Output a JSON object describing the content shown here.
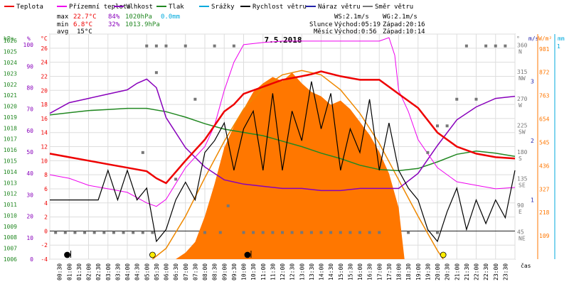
{
  "chart_data": {
    "type": "line",
    "title": "7.5.2018",
    "legend": [
      {
        "label": "Teplota",
        "color": "#ee0000"
      },
      {
        "label": "Přízemní teplota",
        "color": "#ee00ee"
      },
      {
        "label": "Vlhkost",
        "color": "#8800bb"
      },
      {
        "label": "Tlak",
        "color": "#228822"
      },
      {
        "label": "Srážky",
        "color": "#00aadd"
      },
      {
        "label": "Rychlost větru",
        "color": "#000000"
      },
      {
        "label": "Náraz větru",
        "color": "#2222aa"
      },
      {
        "label": "Směr větru",
        "color": "#777777"
      }
    ],
    "stats": {
      "max_label": "max",
      "max_temp": "22.7°C",
      "max_hum": "84%",
      "max_press": "1020hPa",
      "max_rain": "0.0mm",
      "min_label": "min",
      "min_temp": "6.8°C",
      "min_hum": "32%",
      "min_press": "1013.9hPa",
      "avg_label": "avg",
      "avg_temp": "15°C"
    },
    "wind_info": {
      "ws": "WS:2.1m/s",
      "wg": "WG:2.1m/s"
    },
    "sun_info": {
      "label": "Slunce",
      "rise": "Východ:05:19",
      "set": "Západ:20:16"
    },
    "moon_info": {
      "label": "Měsíc",
      "rise": "Východ:0:56",
      "set": "Západ:10:14"
    },
    "axis_units": {
      "hpa": "hPa",
      "pct": "%",
      "temp": "°C",
      "deg": "°",
      "ms": "m/s",
      "wm2": "W/m²",
      "mm": "mm",
      "time": "čas"
    },
    "ylim_temp": [
      -4,
      28
    ],
    "hpa_ticks": [
      "1026",
      "1025",
      "1024",
      "1023",
      "1022",
      "1021",
      "1020",
      "1019",
      "1018",
      "1017",
      "1016",
      "1015",
      "1014",
      "1013",
      "1012",
      "1011",
      "1010",
      "1009",
      "1008",
      "1007",
      "1006"
    ],
    "pct_ticks": [
      "100",
      "90",
      "80",
      "70",
      "60",
      "50",
      "40",
      "30",
      "20",
      "10",
      "0"
    ],
    "temp_ticks": [
      "26",
      "24",
      "22",
      "20",
      "18",
      "16",
      "14",
      "12",
      "10",
      "8",
      "6",
      "4",
      "2",
      "0",
      "-2",
      "-4"
    ],
    "dir_ticks": [
      {
        "deg": "360",
        "dir": "N"
      },
      {
        "deg": "315",
        "dir": "NW"
      },
      {
        "deg": "270",
        "dir": "W"
      },
      {
        "deg": "225",
        "dir": "SW"
      },
      {
        "deg": "180",
        "dir": "S"
      },
      {
        "deg": "135",
        "dir": "SE"
      },
      {
        "deg": "90",
        "dir": "E"
      },
      {
        "deg": "45",
        "dir": "NE"
      }
    ],
    "ms_ticks": [
      "3",
      "2",
      "1"
    ],
    "wm2_ticks": [
      "981",
      "872",
      "763",
      "654",
      "545",
      "436",
      "327",
      "218",
      "109"
    ],
    "mm_ticks": [
      "1"
    ],
    "x_labels": [
      "00:30",
      "01:00",
      "01:30",
      "02:00",
      "02:30",
      "03:00",
      "03:30",
      "04:00",
      "04:30",
      "05:00",
      "05:30",
      "06:00",
      "06:30",
      "07:00",
      "07:30",
      "08:00",
      "08:30",
      "09:00",
      "09:30",
      "10:00",
      "10:30",
      "11:00",
      "11:30",
      "12:00",
      "12:30",
      "13:00",
      "13:30",
      "14:00",
      "14:30",
      "15:00",
      "15:30",
      "16:00",
      "16:30",
      "17:00",
      "17:30",
      "18:00",
      "18:30",
      "19:00",
      "19:30",
      "20:00",
      "20:30",
      "21:00",
      "21:30",
      "22:00",
      "22:30",
      "23:00",
      "23:30"
    ],
    "x_hours": [
      0,
      1,
      2,
      3,
      4,
      5,
      6,
      7,
      8,
      9,
      10,
      11,
      12,
      13,
      14,
      15,
      16,
      17,
      18,
      19,
      20,
      21,
      22,
      23,
      24
    ],
    "series": [
      {
        "name": "Teplota",
        "color": "#ee0000",
        "x": [
          0,
          1,
          2,
          3,
          4,
          5,
          5.5,
          6,
          7,
          8,
          9,
          9.5,
          10,
          11,
          12,
          13,
          13.5,
          14,
          15,
          16,
          17,
          17.5,
          18,
          19,
          20,
          21,
          22,
          23,
          24
        ],
        "values": [
          11,
          10.5,
          10,
          9.5,
          9,
          8.5,
          7.5,
          6.8,
          10,
          13,
          17,
          18,
          19.5,
          20.5,
          21.5,
          22,
          22.3,
          22.7,
          22,
          21.5,
          21.5,
          20.5,
          19.5,
          17.5,
          14,
          12,
          11,
          10.5,
          10.3
        ]
      },
      {
        "name": "Přízemní teplota",
        "color": "#ee00ee",
        "x": [
          0,
          1,
          2,
          3,
          4,
          5,
          5.5,
          6,
          7,
          8,
          8.5,
          9,
          9.5,
          10,
          11,
          12,
          13,
          14,
          15,
          16,
          17,
          17.5,
          17.8,
          18,
          18.5,
          19,
          20,
          21,
          22,
          23,
          24
        ],
        "values": [
          8,
          7.5,
          6.5,
          6,
          5.5,
          4,
          3.5,
          4.5,
          9,
          12,
          15,
          20,
          24,
          26.5,
          26.8,
          27,
          27,
          27,
          27,
          27,
          27,
          27.5,
          25,
          20,
          17,
          13,
          9,
          7,
          6.5,
          6,
          6.2
        ]
      }
    ],
    "humidity": {
      "name": "Vlhkost",
      "color": "#8800bb",
      "x": [
        0,
        1,
        2,
        3,
        4,
        4.5,
        5,
        5.5,
        6,
        7,
        8,
        9,
        10,
        11,
        12,
        13,
        14,
        15,
        16,
        17,
        18,
        19,
        20,
        21,
        22,
        23,
        24
      ],
      "values": [
        68,
        73,
        75,
        77,
        79,
        82,
        84,
        80,
        66,
        52,
        43,
        37,
        35,
        34,
        33,
        33,
        32,
        32,
        33,
        33,
        33,
        40,
        53,
        65,
        71,
        75,
        76
      ]
    },
    "pressure": {
      "name": "Tlak",
      "color": "#228822",
      "x": [
        0,
        1,
        2,
        3,
        4,
        5,
        6,
        7,
        8,
        9,
        10,
        11,
        12,
        13,
        14,
        15,
        16,
        17,
        18,
        19,
        20,
        21,
        22,
        23,
        24
      ],
      "values": [
        1019.2,
        1019.4,
        1019.6,
        1019.7,
        1019.8,
        1019.8,
        1019.5,
        1019.0,
        1018.4,
        1017.9,
        1017.6,
        1017.3,
        1016.8,
        1016.3,
        1015.7,
        1015.2,
        1014.6,
        1014.2,
        1014.1,
        1014.3,
        1014.9,
        1015.6,
        1015.9,
        1015.7,
        1015.4
      ]
    },
    "wind_speed": {
      "name": "Rychlost větru",
      "color": "#000000",
      "x": [
        0,
        0.5,
        1,
        1.5,
        2,
        2.5,
        3,
        3.5,
        4,
        4.5,
        5,
        5.5,
        6,
        6.5,
        7,
        7.5,
        8,
        8.5,
        9,
        9.5,
        10,
        10.5,
        11,
        11.5,
        12,
        12.5,
        13,
        13.5,
        14,
        14.5,
        15,
        15.5,
        16,
        16.5,
        17,
        17.5,
        18,
        18.5,
        19,
        19.5,
        20,
        20.5,
        21,
        21.5,
        22,
        22.5,
        23,
        23.5,
        24
      ],
      "values": [
        1,
        1,
        1,
        1,
        1,
        1,
        1.5,
        1,
        1.5,
        1,
        1.2,
        0.3,
        0.5,
        1,
        1.3,
        1,
        1.8,
        2,
        2.3,
        1.5,
        2.2,
        2.5,
        1.5,
        2.8,
        1.5,
        2.5,
        2,
        3,
        2.2,
        2.8,
        1.5,
        2.2,
        1.8,
        2.7,
        1.5,
        2.3,
        1.5,
        1.2,
        1,
        0.5,
        0.3,
        0.8,
        1.2,
        0.5,
        1,
        0.6,
        1,
        0.7,
        1.5
      ]
    },
    "solar": {
      "name": "Sluneční záření",
      "color": "#ff7700",
      "x": [
        0,
        6.5,
        7,
        7.5,
        8,
        8.5,
        9,
        9.5,
        10,
        10.5,
        11,
        11.5,
        12,
        12.5,
        13,
        13.5,
        14,
        14.5,
        15,
        15.5,
        16,
        16.5,
        17,
        17.5,
        18,
        18.3,
        24
      ],
      "values": [
        0,
        0,
        30,
        80,
        200,
        350,
        520,
        620,
        700,
        780,
        820,
        850,
        830,
        870,
        820,
        780,
        760,
        720,
        740,
        700,
        640,
        580,
        500,
        400,
        240,
        0,
        0
      ]
    },
    "solar_theory": {
      "name": "Teoretické záření",
      "color": "#ff8800",
      "x": [
        5.3,
        6,
        7,
        8,
        9,
        10,
        11,
        12,
        13,
        14,
        15,
        16,
        17,
        18,
        19,
        20,
        20.3
      ],
      "values": [
        0,
        50,
        200,
        380,
        550,
        700,
        800,
        860,
        880,
        860,
        790,
        680,
        540,
        370,
        200,
        40,
        0
      ]
    },
    "wind_dir_points": [
      {
        "h": 0.3,
        "deg": 45
      },
      {
        "h": 0.8,
        "deg": 45
      },
      {
        "h": 1.3,
        "deg": 45
      },
      {
        "h": 1.8,
        "deg": 45
      },
      {
        "h": 2.3,
        "deg": 45
      },
      {
        "h": 2.8,
        "deg": 45
      },
      {
        "h": 3.3,
        "deg": 45
      },
      {
        "h": 3.8,
        "deg": 45
      },
      {
        "h": 4.3,
        "deg": 45
      },
      {
        "h": 4.8,
        "deg": 45
      },
      {
        "h": 5.3,
        "deg": 45
      },
      {
        "h": 4.8,
        "deg": 180
      },
      {
        "h": 5.0,
        "deg": 360
      },
      {
        "h": 5.5,
        "deg": 360
      },
      {
        "h": 6.0,
        "deg": 360
      },
      {
        "h": 7.0,
        "deg": 360
      },
      {
        "h": 8.5,
        "deg": 360
      },
      {
        "h": 9.5,
        "deg": 360
      },
      {
        "h": 6.5,
        "deg": 135
      },
      {
        "h": 5.5,
        "deg": 315
      },
      {
        "h": 7.5,
        "deg": 270
      },
      {
        "h": 8.0,
        "deg": 45
      },
      {
        "h": 8.8,
        "deg": 45
      },
      {
        "h": 9.2,
        "deg": 90
      },
      {
        "h": 10.0,
        "deg": 45
      },
      {
        "h": 10.5,
        "deg": 45
      },
      {
        "h": 11.0,
        "deg": 45
      },
      {
        "h": 11.5,
        "deg": 45
      },
      {
        "h": 12.0,
        "deg": 45
      },
      {
        "h": 12.5,
        "deg": 45
      },
      {
        "h": 13.0,
        "deg": 45
      },
      {
        "h": 13.5,
        "deg": 45
      },
      {
        "h": 14.0,
        "deg": 45
      },
      {
        "h": 14.5,
        "deg": 45
      },
      {
        "h": 15.0,
        "deg": 45
      },
      {
        "h": 15.5,
        "deg": 45
      },
      {
        "h": 16.0,
        "deg": 45
      },
      {
        "h": 16.5,
        "deg": 45
      },
      {
        "h": 17.0,
        "deg": 45
      },
      {
        "h": 18.5,
        "deg": 45
      },
      {
        "h": 20.0,
        "deg": 45
      },
      {
        "h": 19.5,
        "deg": 180
      },
      {
        "h": 20.0,
        "deg": 225
      },
      {
        "h": 20.5,
        "deg": 225
      },
      {
        "h": 21.0,
        "deg": 270
      },
      {
        "h": 22.0,
        "deg": 270
      },
      {
        "h": 21.5,
        "deg": 360
      },
      {
        "h": 22.5,
        "deg": 360
      },
      {
        "h": 23.0,
        "deg": 360
      },
      {
        "h": 23.5,
        "deg": 360
      }
    ],
    "markers": [
      {
        "h": 0.9,
        "kind": "moon_rise",
        "color": "#000000"
      },
      {
        "h": 5.3,
        "kind": "sun_rise",
        "color": "#ffee00"
      },
      {
        "h": 10.2,
        "kind": "moon_set",
        "color": "#000000"
      },
      {
        "h": 20.3,
        "kind": "sun_set",
        "color": "#ffee00"
      }
    ]
  }
}
